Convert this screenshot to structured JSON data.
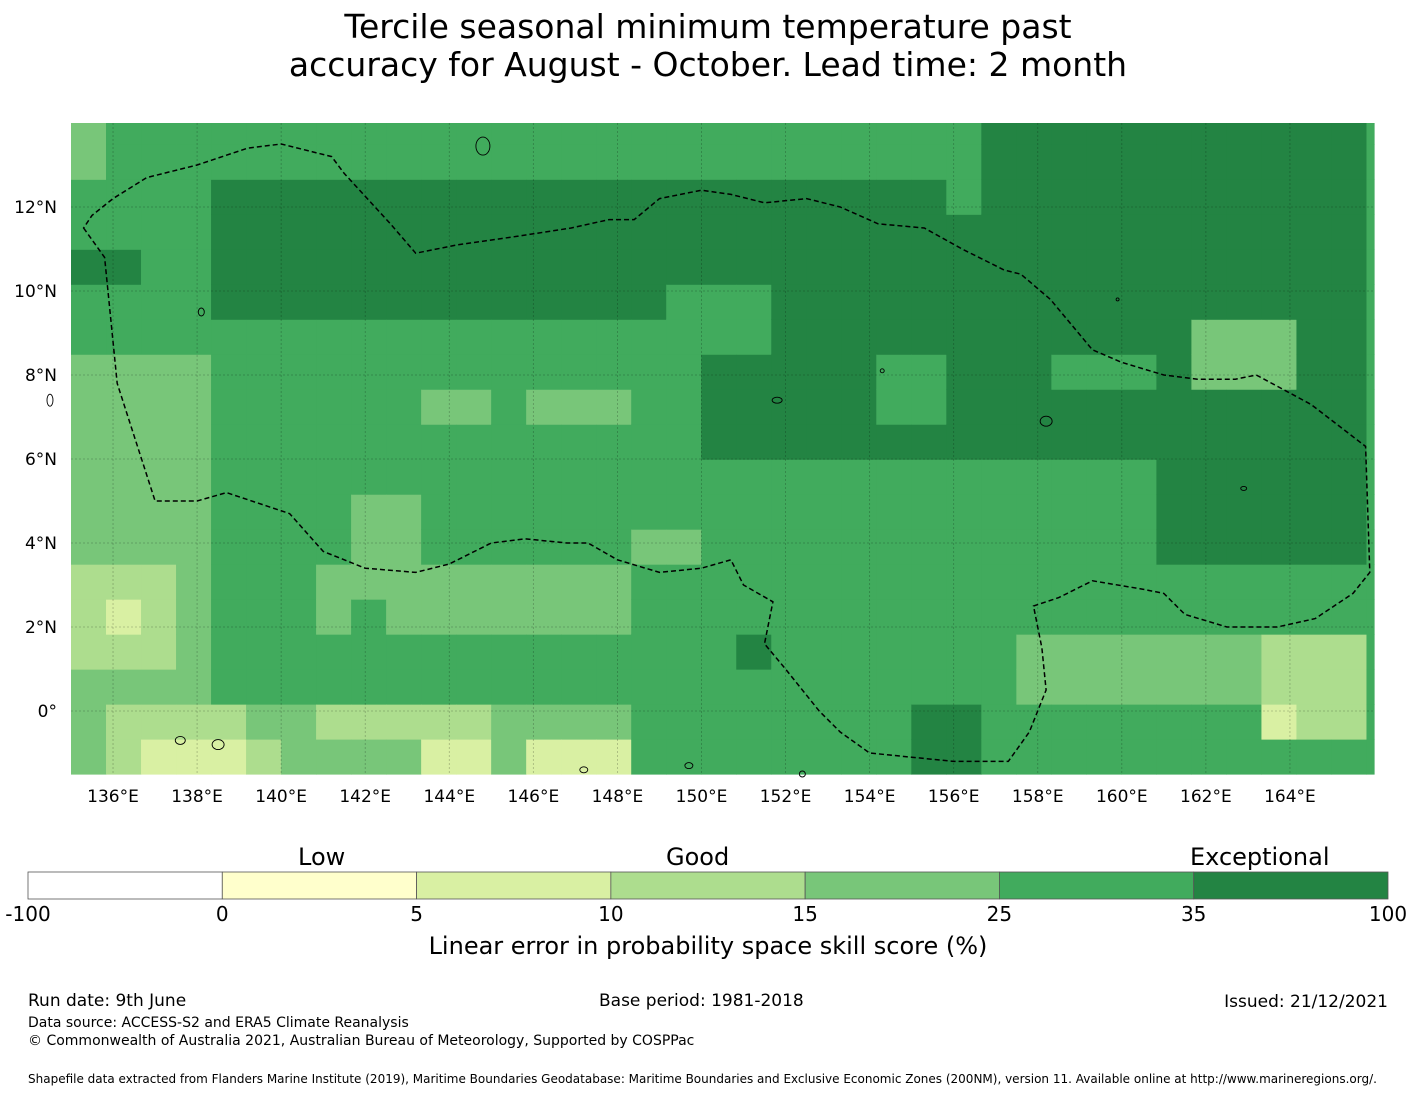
{
  "title_line1": "Tercile seasonal minimum temperature past",
  "title_line2": "accuracy for August - October. Lead time: 2 month",
  "map": {
    "lon_labels": [
      "136°E",
      "138°E",
      "140°E",
      "142°E",
      "144°E",
      "146°E",
      "148°E",
      "150°E",
      "152°E",
      "154°E",
      "156°E",
      "158°E",
      "160°E",
      "162°E",
      "164°E"
    ],
    "lat_labels": [
      "12°N",
      "10°N",
      "8°N",
      "6°N",
      "4°N",
      "2°N",
      "0°"
    ],
    "lon_range": [
      135.0,
      166.0
    ],
    "lat_range": [
      -1.5,
      14.0
    ],
    "cell_size_deg": 0.833,
    "class_colors": [
      "#ffffff",
      "#ffffcc",
      "#d9f0a3",
      "#addd8e",
      "#78c679",
      "#41ab5d",
      "#238443"
    ],
    "default_class": 5,
    "patches": [
      {
        "lon": [
          135.0,
          166.0
        ],
        "lat": [
          8.0,
          14.0
        ],
        "class": 5
      },
      {
        "lon": [
          138.5,
          155.5
        ],
        "lat": [
          9.0,
          12.5
        ],
        "class": 6
      },
      {
        "lon": [
          150.0,
          166.0
        ],
        "lat": [
          6.0,
          11.5
        ],
        "class": 6
      },
      {
        "lon": [
          157.0,
          166.0
        ],
        "lat": [
          11.5,
          14.0
        ],
        "class": 6
      },
      {
        "lon": [
          161.0,
          166.0
        ],
        "lat": [
          3.2,
          8.0
        ],
        "class": 6
      },
      {
        "lon": [
          135.0,
          166.0
        ],
        "lat": [
          -1.5,
          3.5
        ],
        "class": 5
      },
      {
        "lon": [
          135.0,
          138.5
        ],
        "lat": [
          0.5,
          8.5
        ],
        "class": 4
      },
      {
        "lon": [
          135.0,
          137.5
        ],
        "lat": [
          1.0,
          3.5
        ],
        "class": 3
      },
      {
        "lon": [
          135.8,
          136.7
        ],
        "lat": [
          1.7,
          2.8
        ],
        "class": 2
      },
      {
        "lon": [
          135.0,
          141.0
        ],
        "lat": [
          -1.5,
          0.5
        ],
        "class": 4
      },
      {
        "lon": [
          136.0,
          140.0
        ],
        "lat": [
          -1.5,
          0.5
        ],
        "class": 3
      },
      {
        "lon": [
          137.0,
          139.0
        ],
        "lat": [
          -1.2,
          -0.6
        ],
        "class": 2
      },
      {
        "lon": [
          141.0,
          148.0
        ],
        "lat": [
          -1.5,
          0.5
        ],
        "class": 4
      },
      {
        "lon": [
          141.0,
          145.0
        ],
        "lat": [
          -1.0,
          0.5
        ],
        "class": 3
      },
      {
        "lon": [
          143.5,
          145.0
        ],
        "lat": [
          -1.5,
          -0.5
        ],
        "class": 2
      },
      {
        "lon": [
          146.0,
          148.0
        ],
        "lat": [
          -1.5,
          -1.0
        ],
        "class": 2
      },
      {
        "lon": [
          141.0,
          148.0
        ],
        "lat": [
          1.5,
          3.5
        ],
        "class": 4
      },
      {
        "lon": [
          157.5,
          165.5
        ],
        "lat": [
          0.5,
          1.5
        ],
        "class": 4
      },
      {
        "lon": [
          163.5,
          166.0
        ],
        "lat": [
          -0.5,
          1.5
        ],
        "class": 3
      },
      {
        "lon": [
          163.5,
          164.5
        ],
        "lat": [
          -1.0,
          0.0
        ],
        "class": 2
      },
      {
        "lon": [
          155.0,
          157.0
        ],
        "lat": [
          -1.5,
          0.0
        ],
        "class": 6
      },
      {
        "lon": [
          135.0,
          137.0
        ],
        "lat": [
          10.5,
          11.2
        ],
        "class": 6
      },
      {
        "lon": [
          135.0,
          136.0
        ],
        "lat": [
          12.5,
          14.0
        ],
        "class": 4
      },
      {
        "lon": [
          149.5,
          151.5
        ],
        "lat": [
          8.8,
          9.8
        ],
        "class": 5
      },
      {
        "lon": [
          154.0,
          156.0
        ],
        "lat": [
          7.0,
          8.5
        ],
        "class": 5
      },
      {
        "lon": [
          162.0,
          164.0
        ],
        "lat": [
          7.5,
          9.5
        ],
        "class": 4
      },
      {
        "lon": [
          158.5,
          161.0
        ],
        "lat": [
          7.5,
          8.8
        ],
        "class": 5
      },
      {
        "lon": [
          146.0,
          148.0
        ],
        "lat": [
          6.5,
          7.5
        ],
        "class": 4
      },
      {
        "lon": [
          143.0,
          145.0
        ],
        "lat": [
          6.8,
          7.5
        ],
        "class": 4
      },
      {
        "lon": [
          148.5,
          150.0
        ],
        "lat": [
          3.5,
          4.5
        ],
        "class": 4
      },
      {
        "lon": [
          142.0,
          143.0
        ],
        "lat": [
          3.5,
          5.0
        ],
        "class": 4
      },
      {
        "lon": [
          150.5,
          151.5
        ],
        "lat": [
          1.0,
          1.7
        ],
        "class": 6
      },
      {
        "lon": [
          141.8,
          142.5
        ],
        "lat": [
          1.2,
          2.5
        ],
        "class": 5
      },
      {
        "lon": [
          139.0,
          140.5
        ],
        "lat": [
          -0.5,
          0.5
        ],
        "class": 4
      }
    ],
    "eez_boundary": [
      [
        135.3,
        11.5
      ],
      [
        135.8,
        10.8
      ],
      [
        136.1,
        7.8
      ],
      [
        137.0,
        5.0
      ],
      [
        138.0,
        5.0
      ],
      [
        138.7,
        5.2
      ],
      [
        140.2,
        4.7
      ],
      [
        141.0,
        3.8
      ],
      [
        142.0,
        3.4
      ],
      [
        143.2,
        3.3
      ],
      [
        144.0,
        3.5
      ],
      [
        145.0,
        4.0
      ],
      [
        145.8,
        4.1
      ],
      [
        146.8,
        4.0
      ],
      [
        147.3,
        4.0
      ],
      [
        148.0,
        3.6
      ],
      [
        149.0,
        3.3
      ],
      [
        150.0,
        3.4
      ],
      [
        150.7,
        3.6
      ],
      [
        151.0,
        3.0
      ],
      [
        151.7,
        2.6
      ],
      [
        151.5,
        1.6
      ],
      [
        152.0,
        1.0
      ],
      [
        152.8,
        0.0
      ],
      [
        153.3,
        -0.5
      ],
      [
        154.0,
        -1.0
      ],
      [
        155.0,
        -1.1
      ],
      [
        156.0,
        -1.2
      ],
      [
        157.3,
        -1.2
      ],
      [
        157.8,
        -0.5
      ],
      [
        158.2,
        0.5
      ],
      [
        158.1,
        1.5
      ],
      [
        157.9,
        2.5
      ],
      [
        158.5,
        2.7
      ],
      [
        159.3,
        3.1
      ],
      [
        160.5,
        2.9
      ],
      [
        161.0,
        2.8
      ],
      [
        161.5,
        2.3
      ],
      [
        162.5,
        2.0
      ],
      [
        163.7,
        2.0
      ],
      [
        164.6,
        2.2
      ],
      [
        165.5,
        2.8
      ],
      [
        165.9,
        3.3
      ],
      [
        165.8,
        6.3
      ],
      [
        164.5,
        7.3
      ],
      [
        163.2,
        8.0
      ],
      [
        162.7,
        7.9
      ],
      [
        161.8,
        7.9
      ],
      [
        161.0,
        8.0
      ],
      [
        160.0,
        8.3
      ],
      [
        159.3,
        8.6
      ],
      [
        158.3,
        9.8
      ],
      [
        157.6,
        10.4
      ],
      [
        157.2,
        10.5
      ],
      [
        156.2,
        11.0
      ],
      [
        155.3,
        11.5
      ],
      [
        154.2,
        11.6
      ],
      [
        153.3,
        12.0
      ],
      [
        152.5,
        12.2
      ],
      [
        151.5,
        12.1
      ],
      [
        150.7,
        12.3
      ],
      [
        150.0,
        12.4
      ],
      [
        149.0,
        12.2
      ],
      [
        148.4,
        11.7
      ],
      [
        147.8,
        11.7
      ],
      [
        146.9,
        11.5
      ],
      [
        145.6,
        11.3
      ],
      [
        144.2,
        11.1
      ],
      [
        143.2,
        10.9
      ],
      [
        142.6,
        11.6
      ],
      [
        141.5,
        12.8
      ],
      [
        141.2,
        13.2
      ],
      [
        140.0,
        13.5
      ],
      [
        139.2,
        13.4
      ],
      [
        138.0,
        13.0
      ],
      [
        136.8,
        12.7
      ],
      [
        136.0,
        12.2
      ],
      [
        135.5,
        11.8
      ],
      [
        135.3,
        11.5
      ]
    ]
  },
  "colorbar": {
    "low_label": "Low",
    "good_label": "Good",
    "exceptional_label": "Exceptional",
    "ticks": [
      "-100",
      "0",
      "5",
      "10",
      "15",
      "25",
      "35",
      "100"
    ],
    "colors": [
      "#ffffff",
      "#ffffcc",
      "#d9f0a3",
      "#addd8e",
      "#78c679",
      "#41ab5d",
      "#238443"
    ],
    "label": "Linear error in probability space skill score (%)"
  },
  "footer": {
    "run_date": "Run date: 9th June",
    "base_period": "Base period: 1981-2018",
    "issued": "Issued: 21/12/2021",
    "data_source": "Data source: ACCESS-S2 and ERA5 Climate Reanalysis",
    "copyright": "© Commonwealth of Australia 2021, Australian Bureau of Meteorology, Supported by COSPPac",
    "shapefile": "Shapefile data extracted from Flanders Marine Institute (2019), Maritime Boundaries Geodatabase: Maritime Boundaries and Exclusive Economic Zones (200NM), version 11. Available online at http://www.marineregions.org/."
  }
}
